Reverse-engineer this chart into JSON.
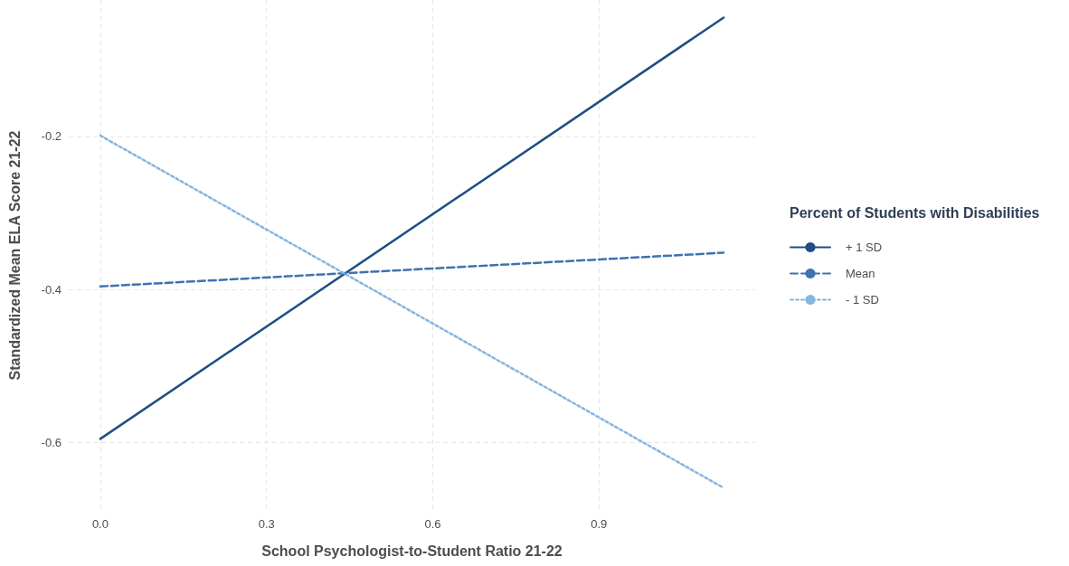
{
  "chart_data": {
    "type": "line",
    "xlabel": "School Psychologist-to-Student Ratio 21-22",
    "ylabel": "Standardized Mean ELA Score 21-22",
    "legend_title": "Percent of Students with Disabilities",
    "x": [
      0,
      1.125
    ],
    "series": [
      {
        "name": "+ 1 SD",
        "color": "#1f4e85",
        "line_style": "solid",
        "values": [
          -0.595,
          -0.045
        ]
      },
      {
        "name": "Mean",
        "color": "#3e72b0",
        "line_style": "dashed",
        "values": [
          -0.396,
          -0.352
        ]
      },
      {
        "name": "- 1 SD",
        "color": "#85b5e0",
        "line_style": "dotted",
        "values": [
          -0.199,
          -0.659
        ]
      }
    ],
    "xlim": [
      -0.057,
      1.182
    ],
    "xticks": [
      {
        "value": 0,
        "label": "0.0"
      },
      0.3,
      0.6,
      0.9
    ],
    "ylim": [
      -0.689,
      -0.022
    ],
    "yticks": [
      -0.6,
      -0.4,
      -0.2
    ],
    "grid": true,
    "legend": "right",
    "marker": "none"
  }
}
